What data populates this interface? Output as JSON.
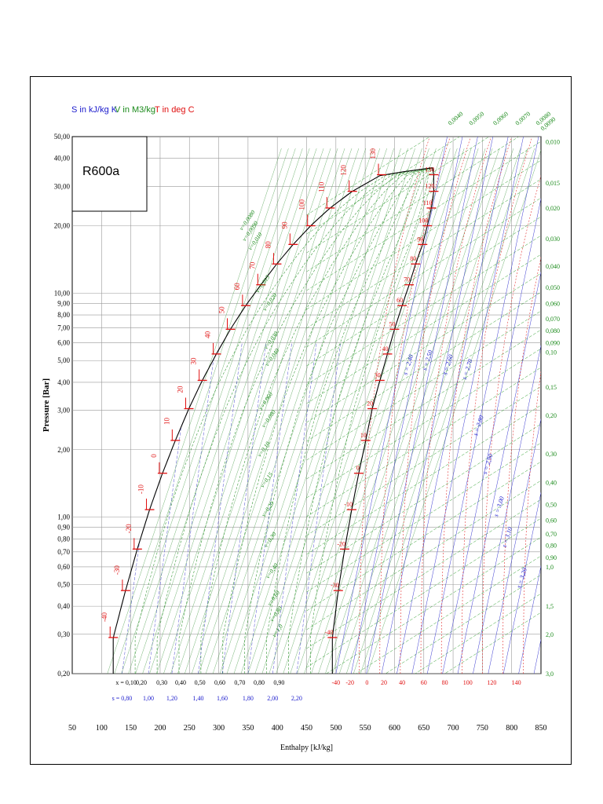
{
  "legend": {
    "s_text": "S in kJ/kg K",
    "v_text": "V in M3/kg",
    "t_text": "T in deg C",
    "s_color": "#1a1acc",
    "v_color": "#1a8a1a",
    "t_color": "#e01010"
  },
  "chart_data": {
    "type": "line",
    "title": "R600a",
    "xlabel": "Enthalpy [kJ/kg]",
    "ylabel": "Pressure [Bar]",
    "xlim": [
      50,
      850
    ],
    "ylim": [
      0.2,
      50
    ],
    "y_scale": "log",
    "grid": true,
    "x_ticks": [
      "50",
      "100",
      "150",
      "200",
      "250",
      "300",
      "350",
      "400",
      "450",
      "500",
      "550",
      "600",
      "650",
      "700",
      "750",
      "800",
      "850"
    ],
    "y_ticks": [
      {
        "v": 50,
        "label": "50,00"
      },
      {
        "v": 40,
        "label": "40,00"
      },
      {
        "v": 30,
        "label": "30,00"
      },
      {
        "v": 20,
        "label": "20,00"
      },
      {
        "v": 10,
        "label": "10,00"
      },
      {
        "v": 9,
        "label": "9,00"
      },
      {
        "v": 8,
        "label": "8,00"
      },
      {
        "v": 7,
        "label": "7,00"
      },
      {
        "v": 6,
        "label": "6,00"
      },
      {
        "v": 5,
        "label": "5,00"
      },
      {
        "v": 4,
        "label": "4,00"
      },
      {
        "v": 3,
        "label": "3,00"
      },
      {
        "v": 2,
        "label": "2,00"
      },
      {
        "v": 1,
        "label": "1,00"
      },
      {
        "v": 0.9,
        "label": "0,90"
      },
      {
        "v": 0.8,
        "label": "0,80"
      },
      {
        "v": 0.7,
        "label": "0,70"
      },
      {
        "v": 0.6,
        "label": "0,60"
      },
      {
        "v": 0.5,
        "label": "0,50"
      },
      {
        "v": 0.4,
        "label": "0,40"
      },
      {
        "v": 0.3,
        "label": "0,30"
      },
      {
        "v": 0.2,
        "label": "0,20"
      }
    ],
    "x_quality_labels": [
      {
        "h": 142,
        "label": "x = 0,10"
      },
      {
        "h": 168,
        "label": "0,20"
      },
      {
        "h": 203,
        "label": "0,30"
      },
      {
        "h": 235,
        "label": "0,40"
      },
      {
        "h": 268,
        "label": "0,50"
      },
      {
        "h": 302,
        "label": "0,60"
      },
      {
        "h": 336,
        "label": "0,70"
      },
      {
        "h": 369,
        "label": "0,80"
      },
      {
        "h": 403,
        "label": "0,90"
      }
    ],
    "s_liquid_labels": [
      {
        "h": 135,
        "label": "s = 0,80"
      },
      {
        "h": 180,
        "label": "1,00"
      },
      {
        "h": 220,
        "label": "1,20"
      },
      {
        "h": 265,
        "label": "1,40"
      },
      {
        "h": 306,
        "label": "1,60"
      },
      {
        "h": 350,
        "label": "1,80"
      },
      {
        "h": 392,
        "label": "2,00"
      },
      {
        "h": 433,
        "label": "2,20"
      }
    ],
    "t_bottom_labels": [
      {
        "h": 500,
        "label": "-40"
      },
      {
        "h": 524,
        "label": "-20"
      },
      {
        "h": 553,
        "label": "0"
      },
      {
        "h": 582,
        "label": "20"
      },
      {
        "h": 613,
        "label": "40"
      },
      {
        "h": 650,
        "label": "60"
      },
      {
        "h": 686,
        "label": "80"
      },
      {
        "h": 725,
        "label": "100"
      },
      {
        "h": 766,
        "label": "120"
      },
      {
        "h": 808,
        "label": "140"
      }
    ],
    "right_v_labels": [
      {
        "p": 47.5,
        "label": "0,010"
      },
      {
        "p": 31,
        "label": "0,015"
      },
      {
        "p": 24,
        "label": "0,020"
      },
      {
        "p": 17.5,
        "label": "0,030"
      },
      {
        "p": 13.2,
        "label": "0,040"
      },
      {
        "p": 10.6,
        "label": "0,050"
      },
      {
        "p": 9.0,
        "label": "0,060"
      },
      {
        "p": 7.7,
        "label": "0,070"
      },
      {
        "p": 6.8,
        "label": "0,080"
      },
      {
        "p": 6.0,
        "label": "0,090"
      },
      {
        "p": 5.45,
        "label": "0,10"
      },
      {
        "p": 3.8,
        "label": "0,15"
      },
      {
        "p": 2.85,
        "label": "0,20"
      },
      {
        "p": 1.92,
        "label": "0,30"
      },
      {
        "p": 1.43,
        "label": "0,40"
      },
      {
        "p": 1.14,
        "label": "0,50"
      },
      {
        "p": 0.97,
        "label": "0,60"
      },
      {
        "p": 0.84,
        "label": "0,70"
      },
      {
        "p": 0.75,
        "label": "0,80"
      },
      {
        "p": 0.66,
        "label": "0,90"
      },
      {
        "p": 0.6,
        "label": "1,0"
      },
      {
        "p": 0.4,
        "label": "1,5"
      },
      {
        "p": 0.3,
        "label": "2,0"
      },
      {
        "p": 0.2,
        "label": "3,0"
      }
    ],
    "top_v_labels": [
      {
        "h": 695,
        "p": 56,
        "label": "0,0040"
      },
      {
        "h": 731,
        "p": 56,
        "label": "0,0050"
      },
      {
        "h": 772,
        "p": 56,
        "label": "0,0060"
      },
      {
        "h": 810,
        "p": 56,
        "label": "0,0070"
      },
      {
        "h": 845,
        "p": 56,
        "label": "0,0080"
      },
      {
        "h": 853,
        "p": 53,
        "label": "0,0090"
      }
    ],
    "s_vapor_labels": [
      {
        "h": 621,
        "p": 4.3,
        "label": "s = 2,40"
      },
      {
        "h": 654,
        "p": 4.5,
        "label": "s = 2,50"
      },
      {
        "h": 689,
        "p": 4.3,
        "label": "s = 2,60"
      },
      {
        "h": 722,
        "p": 4.1,
        "label": "s = 2,70"
      },
      {
        "h": 741,
        "p": 2.3,
        "label": "s = 2,80"
      },
      {
        "h": 757,
        "p": 1.55,
        "label": "s = 2,90"
      },
      {
        "h": 776,
        "p": 1.0,
        "label": "s = 3,00"
      },
      {
        "h": 790,
        "p": 0.73,
        "label": "s = 3,10"
      },
      {
        "h": 815,
        "p": 0.48,
        "label": "s = 3,20"
      }
    ],
    "v_dome_labels": [
      {
        "h": 340,
        "p": 19,
        "label": "v=0,0080"
      },
      {
        "h": 345,
        "p": 17,
        "label": "v=0,0090"
      },
      {
        "h": 355,
        "p": 15.5,
        "label": "v=0,010"
      },
      {
        "h": 368,
        "p": 10.0,
        "label": "v=0,015"
      },
      {
        "h": 380,
        "p": 8.3,
        "label": "v=0,020"
      },
      {
        "h": 382,
        "p": 5.6,
        "label": "v=0,030"
      },
      {
        "h": 384,
        "p": 4.7,
        "label": "v=0,040"
      },
      {
        "h": 373,
        "p": 3.0,
        "label": "v=0,060"
      },
      {
        "h": 378,
        "p": 2.5,
        "label": "v=0,080"
      },
      {
        "h": 371,
        "p": 1.85,
        "label": "v=0,10"
      },
      {
        "h": 376,
        "p": 1.35,
        "label": "v=0,15"
      },
      {
        "h": 378,
        "p": 1.0,
        "label": "v=0,20"
      },
      {
        "h": 382,
        "p": 0.73,
        "label": "v=0,30"
      },
      {
        "h": 385,
        "p": 0.53,
        "label": "v=0,40"
      },
      {
        "h": 388,
        "p": 0.4,
        "label": "v=0,60"
      },
      {
        "h": 392,
        "p": 0.34,
        "label": "v=0,80"
      },
      {
        "h": 396,
        "p": 0.29,
        "label": "v=1,0"
      }
    ],
    "sat_liquid": [
      {
        "T": -40,
        "h": 120,
        "p": 0.29
      },
      {
        "T": -30,
        "h": 141,
        "p": 0.47
      },
      {
        "T": -20,
        "h": 161,
        "p": 0.72
      },
      {
        "T": -10,
        "h": 182,
        "p": 1.08
      },
      {
        "T": 0,
        "h": 204,
        "p": 1.57
      },
      {
        "T": 10,
        "h": 226,
        "p": 2.2
      },
      {
        "T": 20,
        "h": 249,
        "p": 3.05
      },
      {
        "T": 30,
        "h": 272,
        "p": 4.08
      },
      {
        "T": 40,
        "h": 296,
        "p": 5.35
      },
      {
        "T": 50,
        "h": 320,
        "p": 6.9
      },
      {
        "T": 60,
        "h": 346,
        "p": 8.8
      },
      {
        "T": 70,
        "h": 372,
        "p": 10.9
      },
      {
        "T": 80,
        "h": 399,
        "p": 13.5
      },
      {
        "T": 90,
        "h": 427,
        "p": 16.5
      },
      {
        "T": 100,
        "h": 457,
        "p": 20.0
      },
      {
        "T": 110,
        "h": 490,
        "p": 24.0
      },
      {
        "T": 120,
        "h": 528,
        "p": 28.5
      },
      {
        "T": 130,
        "h": 578,
        "p": 33.8
      }
    ],
    "sat_vapor": [
      {
        "T": -40,
        "h": 494,
        "p": 0.29
      },
      {
        "T": -30,
        "h": 504,
        "p": 0.47
      },
      {
        "T": -20,
        "h": 515,
        "p": 0.72
      },
      {
        "T": -10,
        "h": 527,
        "p": 1.08
      },
      {
        "T": 0,
        "h": 539,
        "p": 1.57
      },
      {
        "T": 10,
        "h": 551,
        "p": 2.2
      },
      {
        "T": 20,
        "h": 562,
        "p": 3.05
      },
      {
        "T": 30,
        "h": 575,
        "p": 4.08
      },
      {
        "T": 40,
        "h": 588,
        "p": 5.35
      },
      {
        "T": 50,
        "h": 600,
        "p": 6.9
      },
      {
        "T": 60,
        "h": 613,
        "p": 8.8
      },
      {
        "T": 70,
        "h": 625,
        "p": 10.9
      },
      {
        "T": 80,
        "h": 636,
        "p": 13.5
      },
      {
        "T": 90,
        "h": 648,
        "p": 16.5
      },
      {
        "T": 100,
        "h": 656,
        "p": 20.0
      },
      {
        "T": 110,
        "h": 663,
        "p": 24.0
      },
      {
        "T": 120,
        "h": 667,
        "p": 28.5
      },
      {
        "T": 130,
        "h": 667,
        "p": 33.8
      }
    ],
    "critical_point": {
      "h": 665,
      "p": 36.3
    }
  }
}
